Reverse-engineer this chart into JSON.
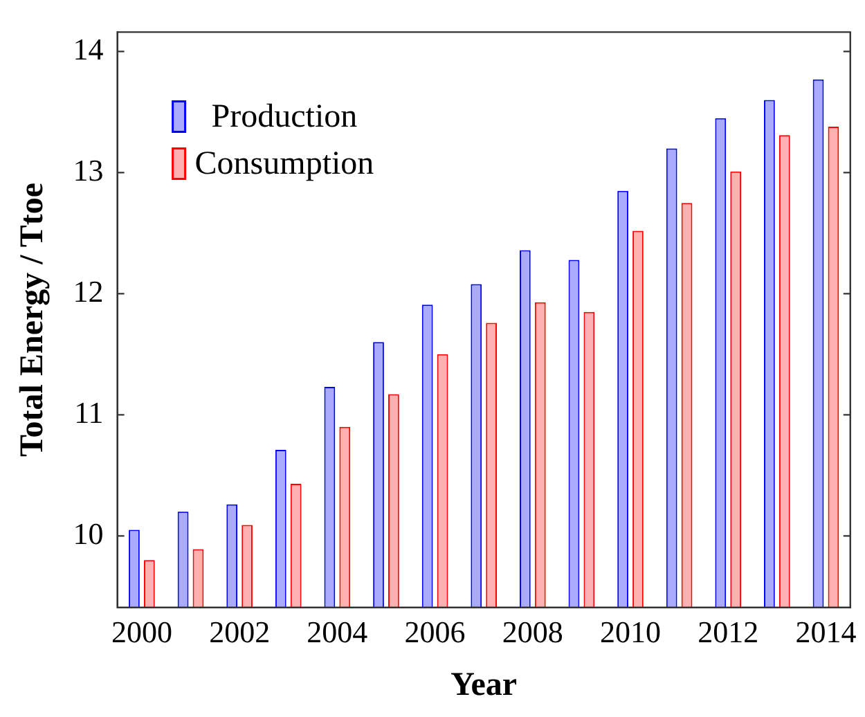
{
  "chart_data": {
    "type": "bar",
    "xlabel": "Year",
    "ylabel": "Total Energy / Ttoe",
    "categories": [
      "2000",
      null,
      "2002",
      null,
      "2004",
      null,
      "2006",
      null,
      "2008",
      null,
      "2010",
      null,
      "2012",
      null,
      "2014"
    ],
    "series": [
      {
        "name": "Production",
        "color": "#aaaaff",
        "values": [
          10.05,
          10.2,
          10.26,
          10.71,
          11.23,
          11.6,
          11.91,
          12.08,
          12.36,
          12.28,
          12.85,
          13.2,
          13.45,
          13.6,
          13.77
        ]
      },
      {
        "name": "Consumption",
        "color": "#ffb0b0",
        "values": [
          9.8,
          9.89,
          10.09,
          10.43,
          10.9,
          11.17,
          11.5,
          11.76,
          11.93,
          11.85,
          12.52,
          12.75,
          13.01,
          13.31,
          13.38
        ]
      }
    ],
    "ylim": [
      9.41,
      14.16
    ],
    "yticks": [
      10,
      11,
      12,
      13,
      14
    ],
    "grid": false,
    "legend": "top left"
  }
}
